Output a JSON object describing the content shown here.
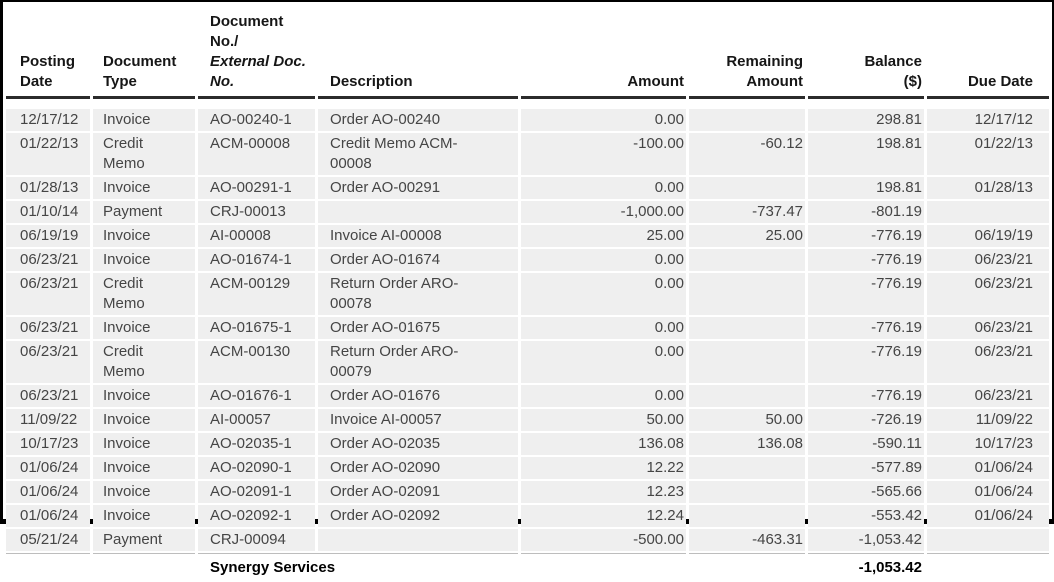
{
  "report": {
    "columns": [
      {
        "id": "posting_date",
        "label": "Posting\nDate",
        "align": "left"
      },
      {
        "id": "document_type",
        "label": "Document\nType",
        "align": "left"
      },
      {
        "id": "document_no",
        "label": "Document No./",
        "label_italic": "External Doc.\nNo.",
        "align": "left"
      },
      {
        "id": "description",
        "label": "Description",
        "align": "left"
      },
      {
        "id": "amount",
        "label": "Amount",
        "align": "right"
      },
      {
        "id": "remaining_amount",
        "label": "Remaining\nAmount",
        "align": "right"
      },
      {
        "id": "balance",
        "label": "Balance\n($)",
        "align": "right"
      },
      {
        "id": "due_date",
        "label": "Due Date",
        "align": "right"
      }
    ],
    "rows": [
      {
        "posting_date": "12/17/12",
        "document_type": "Invoice",
        "document_no": "AO-00240-1",
        "description": "Order AO-00240",
        "amount": "0.00",
        "remaining_amount": "",
        "balance": "298.81",
        "due_date": "12/17/12"
      },
      {
        "posting_date": "01/22/13",
        "document_type": "Credit\nMemo",
        "document_no": "ACM-00008",
        "description": "Credit Memo ACM-\n00008",
        "amount": "-100.00",
        "remaining_amount": "-60.12",
        "balance": "198.81",
        "due_date": "01/22/13"
      },
      {
        "posting_date": "01/28/13",
        "document_type": "Invoice",
        "document_no": "AO-00291-1",
        "description": "Order AO-00291",
        "amount": "0.00",
        "remaining_amount": "",
        "balance": "198.81",
        "due_date": "01/28/13"
      },
      {
        "posting_date": "01/10/14",
        "document_type": "Payment",
        "document_no": "CRJ-00013",
        "description": "",
        "amount": "-1,000.00",
        "remaining_amount": "-737.47",
        "balance": "-801.19",
        "due_date": ""
      },
      {
        "posting_date": "06/19/19",
        "document_type": "Invoice",
        "document_no": "AI-00008",
        "description": "Invoice AI-00008",
        "amount": "25.00",
        "remaining_amount": "25.00",
        "balance": "-776.19",
        "due_date": "06/19/19"
      },
      {
        "posting_date": "06/23/21",
        "document_type": "Invoice",
        "document_no": "AO-01674-1",
        "description": "Order AO-01674",
        "amount": "0.00",
        "remaining_amount": "",
        "balance": "-776.19",
        "due_date": "06/23/21"
      },
      {
        "posting_date": "06/23/21",
        "document_type": "Credit\nMemo",
        "document_no": "ACM-00129",
        "description": "Return Order ARO-\n00078",
        "amount": "0.00",
        "remaining_amount": "",
        "balance": "-776.19",
        "due_date": "06/23/21"
      },
      {
        "posting_date": "06/23/21",
        "document_type": "Invoice",
        "document_no": "AO-01675-1",
        "description": "Order AO-01675",
        "amount": "0.00",
        "remaining_amount": "",
        "balance": "-776.19",
        "due_date": "06/23/21"
      },
      {
        "posting_date": "06/23/21",
        "document_type": "Credit\nMemo",
        "document_no": "ACM-00130",
        "description": "Return Order ARO-\n00079",
        "amount": "0.00",
        "remaining_amount": "",
        "balance": "-776.19",
        "due_date": "06/23/21"
      },
      {
        "posting_date": "06/23/21",
        "document_type": "Invoice",
        "document_no": "AO-01676-1",
        "description": "Order AO-01676",
        "amount": "0.00",
        "remaining_amount": "",
        "balance": "-776.19",
        "due_date": "06/23/21"
      },
      {
        "posting_date": "11/09/22",
        "document_type": "Invoice",
        "document_no": "AI-00057",
        "description": "Invoice AI-00057",
        "amount": "50.00",
        "remaining_amount": "50.00",
        "balance": "-726.19",
        "due_date": "11/09/22"
      },
      {
        "posting_date": "10/17/23",
        "document_type": "Invoice",
        "document_no": "AO-02035-1",
        "description": "Order AO-02035",
        "amount": "136.08",
        "remaining_amount": "136.08",
        "balance": "-590.11",
        "due_date": "10/17/23"
      },
      {
        "posting_date": "01/06/24",
        "document_type": "Invoice",
        "document_no": "AO-02090-1",
        "description": "Order AO-02090",
        "amount": "12.22",
        "remaining_amount": "",
        "balance": "-577.89",
        "due_date": "01/06/24"
      },
      {
        "posting_date": "01/06/24",
        "document_type": "Invoice",
        "document_no": "AO-02091-1",
        "description": "Order AO-02091",
        "amount": "12.23",
        "remaining_amount": "",
        "balance": "-565.66",
        "due_date": "01/06/24"
      },
      {
        "posting_date": "01/06/24",
        "document_type": "Invoice",
        "document_no": "AO-02092-1",
        "description": "Order AO-02092",
        "amount": "12.24",
        "remaining_amount": "",
        "balance": "-553.42",
        "due_date": "01/06/24"
      },
      {
        "posting_date": "05/21/24",
        "document_type": "Payment",
        "document_no": "CRJ-00094",
        "description": "",
        "amount": "-500.00",
        "remaining_amount": "-463.31",
        "balance": "-1,053.42",
        "due_date": ""
      }
    ],
    "footer": {
      "customer_name": "Synergy Services",
      "balance_total": "-1,053.42"
    },
    "colors": {
      "row_bg": "#efefef",
      "header_rule": "#2b2b2b",
      "footer_rule": "#bdbdbd",
      "frame_border": "#000000",
      "body_text": "#454545",
      "header_text": "#161616"
    }
  }
}
